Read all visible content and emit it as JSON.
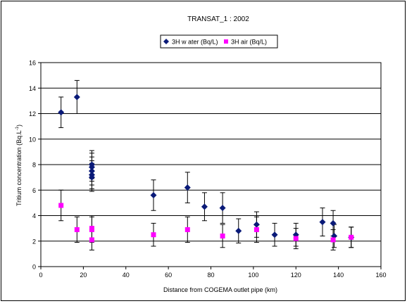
{
  "chart_data": {
    "type": "scatter",
    "title": "TRANSAT_1 : 2002",
    "xlabel": "Distance from COGEMA outlet pipe (km)",
    "ylabel": "Tritium concentration (Bq.L",
    "ylabel_sup": "-1",
    "ylabel_close": ")",
    "xlim": [
      0,
      160
    ],
    "ylim": [
      0,
      16
    ],
    "x_ticks": [
      "0",
      "20",
      "40",
      "60",
      "80",
      "100",
      "120",
      "140",
      "160"
    ],
    "y_ticks": [
      "0",
      "2",
      "4",
      "6",
      "8",
      "10",
      "12",
      "14",
      "16"
    ],
    "grid": true,
    "legend_position": "top-center",
    "series": [
      {
        "name": "3H w ater (Bq/L)",
        "marker": "diamond",
        "color": "#0a1a78",
        "points": [
          {
            "x": 9.5,
            "y": 12.1,
            "err": 1.2
          },
          {
            "x": 17,
            "y": 13.3,
            "err": 1.3
          },
          {
            "x": 24,
            "y": 8.0,
            "err": 1.1
          },
          {
            "x": 24,
            "y": 7.8,
            "err": 1.1
          },
          {
            "x": 24,
            "y": 7.5,
            "err": 1.1
          },
          {
            "x": 24,
            "y": 7.2,
            "err": 1.1
          },
          {
            "x": 24,
            "y": 7.0,
            "err": 1.1
          },
          {
            "x": 53,
            "y": 5.6,
            "err": 1.2
          },
          {
            "x": 69,
            "y": 6.2,
            "err": 1.2
          },
          {
            "x": 77,
            "y": 4.7,
            "err": 1.1
          },
          {
            "x": 85.5,
            "y": 4.6,
            "err": 1.2
          },
          {
            "x": 93,
            "y": 2.8,
            "err": 0.95
          },
          {
            "x": 101.5,
            "y": 3.3,
            "err": 1.0
          },
          {
            "x": 110,
            "y": 2.5,
            "err": 0.9
          },
          {
            "x": 120,
            "y": 2.5,
            "err": 0.9
          },
          {
            "x": 132.5,
            "y": 3.5,
            "err": 1.1
          },
          {
            "x": 137.5,
            "y": 3.4,
            "err": 1.0
          },
          {
            "x": 138,
            "y": 2.4,
            "err": 0.9
          },
          {
            "x": 146,
            "y": 2.3,
            "err": 0.8
          }
        ]
      },
      {
        "name": "3H air (Bq/L)",
        "marker": "square",
        "color": "#ff00ff",
        "points": [
          {
            "x": 9.5,
            "y": 4.8,
            "err": 1.2
          },
          {
            "x": 17,
            "y": 2.9,
            "err": 1.0
          },
          {
            "x": 24,
            "y": 3.0,
            "err": 1.0
          },
          {
            "x": 24,
            "y": 2.9,
            "err": 1.0
          },
          {
            "x": 24,
            "y": 2.1,
            "err": 0.8
          },
          {
            "x": 53,
            "y": 2.5,
            "err": 0.9
          },
          {
            "x": 69,
            "y": 2.9,
            "err": 1.0
          },
          {
            "x": 85.5,
            "y": 2.4,
            "err": 0.9
          },
          {
            "x": 101.5,
            "y": 2.9,
            "err": 1.0
          },
          {
            "x": 120,
            "y": 2.2,
            "err": 0.8
          },
          {
            "x": 137.5,
            "y": 2.1,
            "err": 0.8
          },
          {
            "x": 146,
            "y": 2.3,
            "err": 0.8
          }
        ]
      }
    ]
  }
}
